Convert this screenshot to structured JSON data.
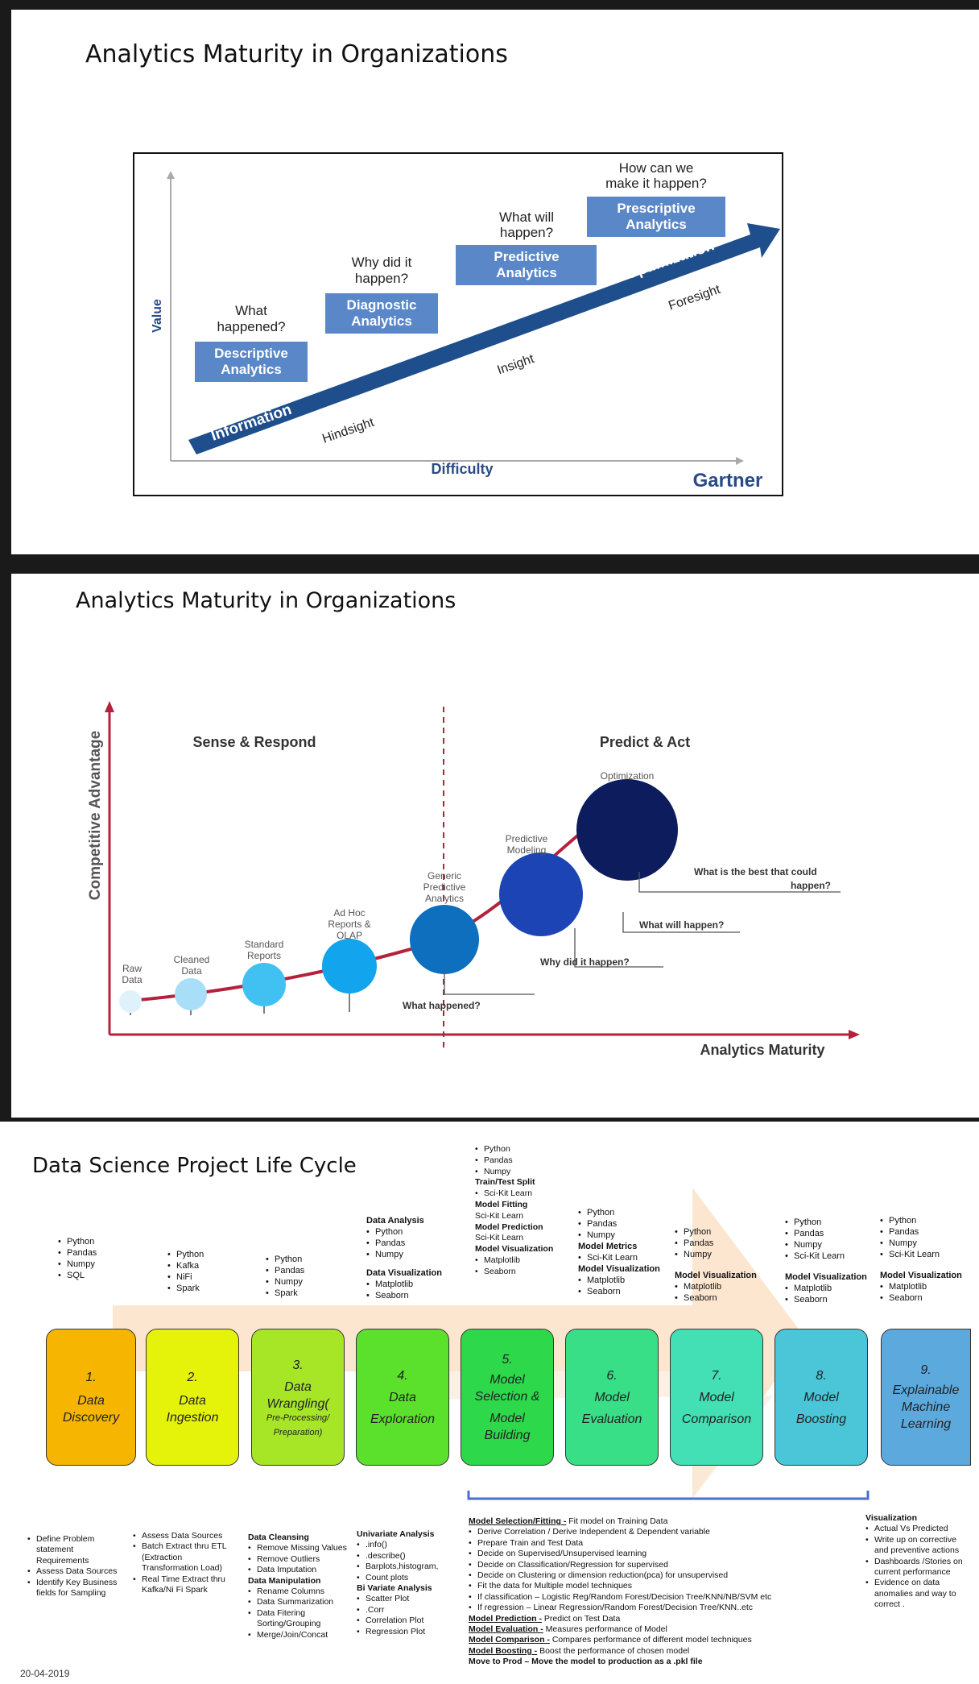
{
  "slide1": {
    "title": "Analytics Maturity in Organizations",
    "y_axis": "Value",
    "x_axis": "Difficulty",
    "brand": "Gartner",
    "arrow_labels": [
      "Information",
      "Optimization"
    ],
    "under_labels": [
      "Hindsight",
      "Insight",
      "Foresight"
    ],
    "steps": [
      {
        "question": [
          "What",
          "happened?"
        ],
        "box": [
          "Descriptive",
          "Analytics"
        ]
      },
      {
        "question": [
          "Why did it",
          "happen?"
        ],
        "box": [
          "Diagnostic",
          "Analytics"
        ]
      },
      {
        "question": [
          "What will",
          "happen?"
        ],
        "box": [
          "Predictive",
          "Analytics"
        ]
      },
      {
        "question": [
          "How can we",
          "make it happen?"
        ],
        "box": [
          "Prescriptive",
          "Analytics"
        ]
      }
    ]
  },
  "slide2": {
    "title": "Analytics Maturity in Organizations",
    "y_axis": "Competitive Advantage",
    "x_axis": "Analytics Maturity",
    "left_heading": "Sense & Respond",
    "right_heading": "Predict & Act",
    "bubbles": [
      {
        "label": [
          "Raw",
          "Data"
        ]
      },
      {
        "label": [
          "Cleaned",
          "Data"
        ]
      },
      {
        "label": [
          "Standard",
          "Reports"
        ]
      },
      {
        "label": [
          "Ad Hoc",
          "Reports &",
          "OLAP"
        ]
      },
      {
        "label": [
          "Generic",
          "Predictive",
          "Analytics"
        ]
      },
      {
        "label": [
          "Predictive",
          "Modeling"
        ]
      },
      {
        "label": [
          "Optimization"
        ]
      }
    ],
    "questions": [
      "What happened?",
      "Why did it happen?",
      "What will happen?",
      "What is the best that could",
      "happen?"
    ]
  },
  "slide3": {
    "title": "Data Science Project Life Cycle",
    "date": "20-04-2019",
    "stages": [
      {
        "num": "1.",
        "name": [
          "Data",
          "Discovery"
        ],
        "sub": []
      },
      {
        "num": "2.",
        "name": [
          "Data",
          "Ingestion"
        ],
        "sub": []
      },
      {
        "num": "3.",
        "name": [
          "Data",
          "Wrangling("
        ],
        "sub": [
          "Pre-Processing/",
          "Preparation)"
        ]
      },
      {
        "num": "4.",
        "name": [
          "Data",
          "Exploration"
        ],
        "sub": []
      },
      {
        "num": "5.",
        "name": [
          "Model",
          "Selection &",
          "Model",
          "Building"
        ],
        "sub": []
      },
      {
        "num": "6.",
        "name": [
          "Model",
          "Evaluation"
        ],
        "sub": []
      },
      {
        "num": "7.",
        "name": [
          "Model",
          "Comparison"
        ],
        "sub": []
      },
      {
        "num": "8.",
        "name": [
          "Model",
          "Boosting"
        ],
        "sub": []
      },
      {
        "num": "9.",
        "name": [
          "Explainable",
          "Machine",
          "Learning"
        ],
        "sub": []
      }
    ],
    "tools": {
      "t1": [
        "Python",
        "Pandas",
        "Numpy",
        "SQL"
      ],
      "t2": [
        "Python",
        "Kafka",
        "NiFi",
        "Spark"
      ],
      "t3": [
        "Python",
        "Pandas",
        "Numpy",
        "Spark"
      ],
      "t4": {
        "h1": "Data Analysis",
        "a": [
          "Python",
          "Pandas",
          "Numpy"
        ],
        "h2": "Data Visualization",
        "b": [
          "Matplotlib",
          "Seaborn"
        ]
      },
      "t5": {
        "a": [
          "Python",
          "Pandas",
          "Numpy"
        ],
        "h1": "Train/Test Split",
        "b": [
          "Sci-Kit Learn"
        ],
        "h2": "Model Fitting",
        "c": "Sci-Kit Learn",
        "h3": "Model Prediction",
        "d": "Sci-Kit Learn",
        "h4": "Model Visualization",
        "e": [
          "Matplotlib",
          "Seaborn"
        ]
      },
      "t6": {
        "a": [
          "Python",
          "Pandas",
          "Numpy"
        ],
        "h1": "Model Metrics",
        "b": [
          "Sci-Kit Learn"
        ],
        "h2": "Model Visualization",
        "c": [
          "Matplotlib",
          "Seaborn"
        ]
      },
      "t7": {
        "a": [
          "Python",
          "Pandas",
          "Numpy"
        ],
        "h1": "Model Visualization",
        "b": [
          "Matplotlib",
          "Seaborn"
        ]
      },
      "t8": {
        "a": [
          "Python",
          "Pandas",
          "Numpy",
          "Sci-Kit Learn"
        ],
        "h1": "Model Visualization",
        "b": [
          "Matplotlib",
          "Seaborn"
        ]
      },
      "t9": {
        "a": [
          "Python",
          "Pandas",
          "Numpy",
          "Sci-Kit Learn"
        ],
        "h1": "Model Visualization",
        "b": [
          "Matplotlib",
          "Seaborn"
        ]
      }
    },
    "details": {
      "d1": [
        "Define Problem statement Requirements",
        "Assess Data Sources",
        "Identify Key Business fields for Sampling"
      ],
      "d2": [
        "Assess Data Sources",
        "Batch Extract thru ETL (Extraction Transformation Load)",
        "Real Time Extract thru Kafka/Ni Fi Spark"
      ],
      "d3": {
        "h1": "Data Cleansing",
        "a": [
          "Remove Missing Values",
          "Remove Outliers",
          "Data Imputation"
        ],
        "h2": "Data Manipulation",
        "b": [
          "Rename Columns",
          "Data Summarization",
          "Data Fitering Sorting/Grouping",
          "Merge/Join/Concat"
        ]
      },
      "d4": {
        "h1": "Univariate Analysis",
        "a": [
          ".info()",
          ".describe()",
          "Barplots,histogram,",
          "Count plots"
        ],
        "h2": "Bi Variate Analysis",
        "b": [
          "Scatter Plot",
          ".Corr",
          "Correlation Plot",
          "Regression Plot"
        ]
      },
      "d5": {
        "l1h": "Model Selection/Fitting -",
        "l1": " Fit model on Training Data",
        "a": [
          "Derive Correlation / Derive Independent & Dependent variable",
          "Prepare Train and Test Data",
          "Decide on Supervised/Unsupervised learning",
          "Decide on Classification/Regression for supervised",
          "Decide on Clustering or dimension reduction(pca) for unsupervised",
          "Fit the data for Multiple model techniques",
          "If classification – Logistic Reg/Random Forest/Decision Tree/KNN/NB/SVM etc",
          "If regression – Linear Regression/Random Forest/Decision Tree/KNN..etc"
        ],
        "l2h": "Model Prediction -",
        "l2": " Predict on Test Data",
        "l3h": "Model Evaluation -",
        "l3": " Measures performance of Model",
        "l4h": "Model Comparison -",
        "l4": " Compares performance of different model techniques",
        "l5h": "Model Boosting -",
        "l5": " Boost the performance of chosen model",
        "l6": "Move to Prod – Move the model to production as a .pkl file"
      },
      "d9": {
        "h1": "Visualization",
        "a": [
          "Actual Vs Predicted",
          "Write up on corrective and preventive actions",
          "Dashboards /Stories on current performance",
          "Evidence on data anomalies and way to correct ."
        ]
      }
    },
    "colors": [
      "#f6b500",
      "#e5f30a",
      "#a7e627",
      "#5be12b",
      "#2dd94b",
      "#38df86",
      "#43dfb5",
      "#4ac6d8",
      "#5ca9dd"
    ]
  }
}
